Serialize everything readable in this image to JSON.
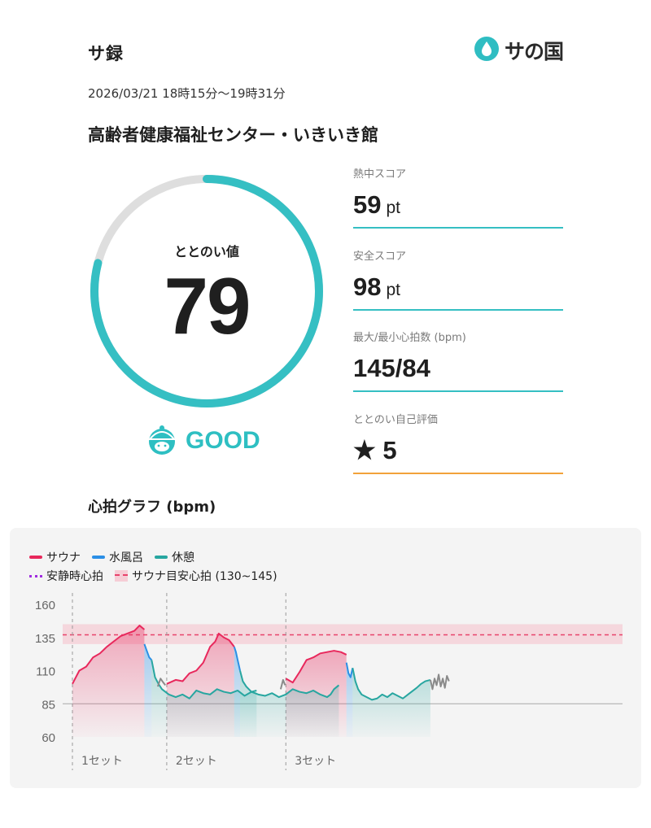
{
  "header": {
    "app_title": "サ録",
    "logo_text": "サの国"
  },
  "session": {
    "datetime": "2026/03/21 18時15分〜19時31分",
    "facility": "高齢者健康福祉センター・いきいき館"
  },
  "score": {
    "label": "ととのい値",
    "value": "79",
    "progress": 0.79,
    "rating": "GOOD"
  },
  "stats": [
    {
      "label": "熱中スコア",
      "value": "59",
      "unit": "pt"
    },
    {
      "label": "安全スコア",
      "value": "98",
      "unit": "pt"
    },
    {
      "label": "最大/最小心拍数 (bpm)",
      "value": "145/84",
      "unit": ""
    },
    {
      "label": "ととのい自己評価",
      "value": "★ 5",
      "unit": ""
    }
  ],
  "chart_section": {
    "title": "心拍グラフ (bpm)"
  },
  "colors": {
    "sauna": "#e8285c",
    "water_bath": "#2b8fe6",
    "rest": "#27a6a0",
    "teal": "#35bfc3",
    "orange": "#f2a23a",
    "resting_hr": "#a02ce0"
  },
  "icons": {
    "logo": "water-drop-icon",
    "rating": "sauna-hat-face-icon"
  },
  "legend": {
    "sauna": "サウナ",
    "water": "水風呂",
    "rest": "休憩",
    "resting": "安静時心拍",
    "target": "サウナ目安心拍 (130~145)"
  },
  "chart_data": {
    "type": "line",
    "title": "心拍グラフ (bpm)",
    "ylabel": "",
    "xlabel": "",
    "ylim": [
      60,
      160
    ],
    "yticks": [
      160,
      135,
      110,
      85,
      60
    ],
    "x_domain": [
      0,
      100
    ],
    "set_labels": [
      {
        "label": "1セット",
        "x": 0
      },
      {
        "label": "2セット",
        "x": 27.4
      },
      {
        "label": "3セット",
        "x": 62
      }
    ],
    "target_band": [
      130,
      145
    ],
    "target_line": 137,
    "resting_hr": 85,
    "series": [
      {
        "name": "サウナ",
        "segments": [
          {
            "x": [
              0,
              2,
              4,
              6,
              8,
              10,
              12,
              14,
              16,
              18,
              19.5,
              20.9
            ],
            "y": [
              100,
              110,
              113,
              120,
              123,
              128,
              132,
              136,
              138,
              140,
              144,
              141
            ]
          },
          {
            "x": [
              27.4,
              30,
              32,
              34,
              36,
              38,
              40,
              41.5,
              42.5,
              44,
              45.5,
              47
            ],
            "y": [
              100,
              103,
              102,
              108,
              110,
              116,
              128,
              132,
              138,
              135,
              133,
              128
            ]
          },
          {
            "x": [
              62,
              64,
              66,
              68,
              70,
              72,
              74,
              76,
              78,
              79.6
            ],
            "y": [
              104,
              101,
              109,
              118,
              120,
              123,
              124,
              125,
              124,
              122
            ]
          }
        ]
      },
      {
        "name": "水風呂",
        "segments": [
          {
            "x": [
              20.9,
              21.6,
              22.3,
              23
            ],
            "y": [
              130,
              125,
              120,
              118
            ]
          },
          {
            "x": [
              47,
              47.5,
              48,
              48.7
            ],
            "y": [
              128,
              124,
              118,
              110
            ]
          },
          {
            "x": [
              79.6,
              80.2,
              80.8,
              81.4
            ],
            "y": [
              116,
              108,
              105,
              112
            ]
          }
        ]
      },
      {
        "name": "休憩",
        "segments": [
          {
            "x": [
              23,
              24,
              25,
              26,
              28,
              30,
              32,
              34,
              36,
              38,
              40,
              42,
              44,
              46,
              48,
              50,
              52,
              53.5
            ],
            "y": [
              118,
              105,
              100,
              96,
              92,
              90,
              92,
              89,
              95,
              93,
              92,
              96,
              94,
              93,
              95,
              91,
              94,
              95
            ]
          },
          {
            "x": [
              48.7,
              49.5,
              50.5,
              52,
              54,
              56,
              58,
              60,
              62,
              64,
              66,
              68,
              70,
              72,
              74,
              75,
              76,
              77.4
            ],
            "y": [
              110,
              102,
              98,
              94,
              92,
              91,
              93,
              90,
              92,
              96,
              94,
              93,
              95,
              92,
              90,
              92,
              96,
              99
            ]
          },
          {
            "x": [
              81.4,
              82.2,
              83,
              84,
              85.5,
              87,
              88.5,
              90,
              91.5,
              93,
              94.5,
              96,
              97.5,
              99,
              100,
              101.3,
              102.5,
              104
            ],
            "y": [
              112,
              102,
              96,
              92,
              90,
              88,
              89,
              92,
              90,
              93,
              91,
              89,
              92,
              95,
              97,
              100,
              102,
              103
            ]
          }
        ]
      },
      {
        "name": "other",
        "segments": [
          {
            "x": [
              24.8,
              25.6,
              26.4,
              27
            ],
            "y": [
              98,
              104,
              101,
              99
            ]
          },
          {
            "x": [
              60.5,
              61.2,
              61.8
            ],
            "y": [
              96,
              103,
              99
            ]
          },
          {
            "x": [
              104,
              104.6,
              105.2,
              105.8,
              106.4,
              107,
              107.6,
              108.2,
              108.8,
              109.4
            ],
            "y": [
              103,
              96,
              104,
              99,
              107,
              98,
              104,
              97,
              106,
              102
            ]
          }
        ]
      }
    ]
  }
}
